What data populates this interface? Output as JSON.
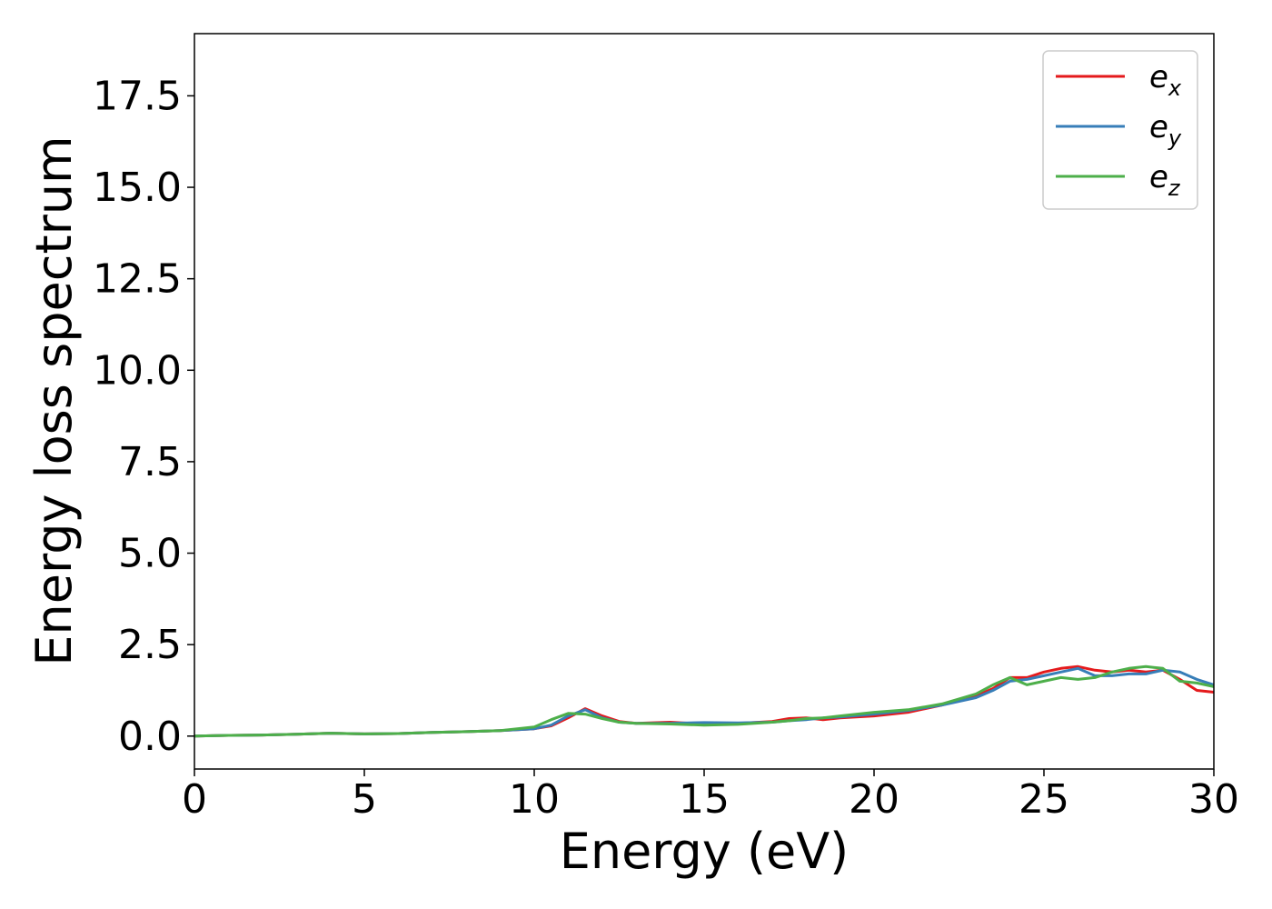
{
  "chart_data": {
    "type": "line",
    "xlabel": "Energy (eV)",
    "ylabel": "Energy loss spectrum",
    "xlim": [
      0,
      30
    ],
    "ylim": [
      -0.9,
      19.2
    ],
    "xticks": [
      0,
      5,
      10,
      15,
      20,
      25,
      30
    ],
    "xtick_labels": [
      "0",
      "5",
      "10",
      "15",
      "20",
      "25",
      "30"
    ],
    "yticks": [
      0.0,
      2.5,
      5.0,
      7.5,
      10.0,
      12.5,
      15.0,
      17.5
    ],
    "ytick_labels": [
      "0.0",
      "2.5",
      "5.0",
      "7.5",
      "10.0",
      "12.5",
      "15.0",
      "17.5"
    ],
    "grid": false,
    "legend_position": "top-right",
    "x": [
      0,
      1,
      2,
      3,
      4,
      5,
      6,
      7,
      8,
      9,
      10,
      10.5,
      11,
      11.5,
      12,
      12.5,
      13,
      14,
      15,
      16,
      17,
      17.5,
      18,
      18.5,
      19,
      20,
      21,
      22,
      23,
      23.5,
      24,
      24.5,
      25,
      25.5,
      26,
      26.5,
      27,
      27.5,
      28,
      28.5,
      29,
      29.5,
      30
    ],
    "series": [
      {
        "name": "e",
        "subscript": "x",
        "color": "#e41a1c",
        "values": [
          0,
          0.02,
          0.03,
          0.05,
          0.08,
          0.06,
          0.07,
          0.1,
          0.12,
          0.15,
          0.2,
          0.28,
          0.5,
          0.75,
          0.55,
          0.4,
          0.35,
          0.38,
          0.33,
          0.35,
          0.4,
          0.48,
          0.5,
          0.45,
          0.5,
          0.55,
          0.65,
          0.85,
          1.1,
          1.3,
          1.6,
          1.6,
          1.75,
          1.85,
          1.9,
          1.8,
          1.75,
          1.8,
          1.75,
          1.8,
          1.55,
          1.25,
          1.2
        ]
      },
      {
        "name": "e",
        "subscript": "y",
        "color": "#377eb8",
        "values": [
          0,
          0.02,
          0.03,
          0.05,
          0.08,
          0.06,
          0.07,
          0.1,
          0.12,
          0.15,
          0.2,
          0.3,
          0.55,
          0.72,
          0.5,
          0.38,
          0.35,
          0.35,
          0.37,
          0.36,
          0.38,
          0.42,
          0.45,
          0.5,
          0.52,
          0.6,
          0.7,
          0.85,
          1.05,
          1.25,
          1.5,
          1.55,
          1.65,
          1.75,
          1.85,
          1.65,
          1.65,
          1.7,
          1.7,
          1.8,
          1.75,
          1.55,
          1.4
        ]
      },
      {
        "name": "e",
        "subscript": "z",
        "color": "#4daf4a",
        "values": [
          0,
          0.02,
          0.03,
          0.05,
          0.08,
          0.06,
          0.07,
          0.1,
          0.12,
          0.15,
          0.25,
          0.45,
          0.62,
          0.6,
          0.48,
          0.38,
          0.35,
          0.33,
          0.3,
          0.32,
          0.38,
          0.42,
          0.48,
          0.5,
          0.55,
          0.65,
          0.72,
          0.88,
          1.15,
          1.4,
          1.6,
          1.4,
          1.5,
          1.6,
          1.55,
          1.6,
          1.75,
          1.85,
          1.9,
          1.85,
          1.5,
          1.45,
          1.35
        ]
      }
    ]
  }
}
